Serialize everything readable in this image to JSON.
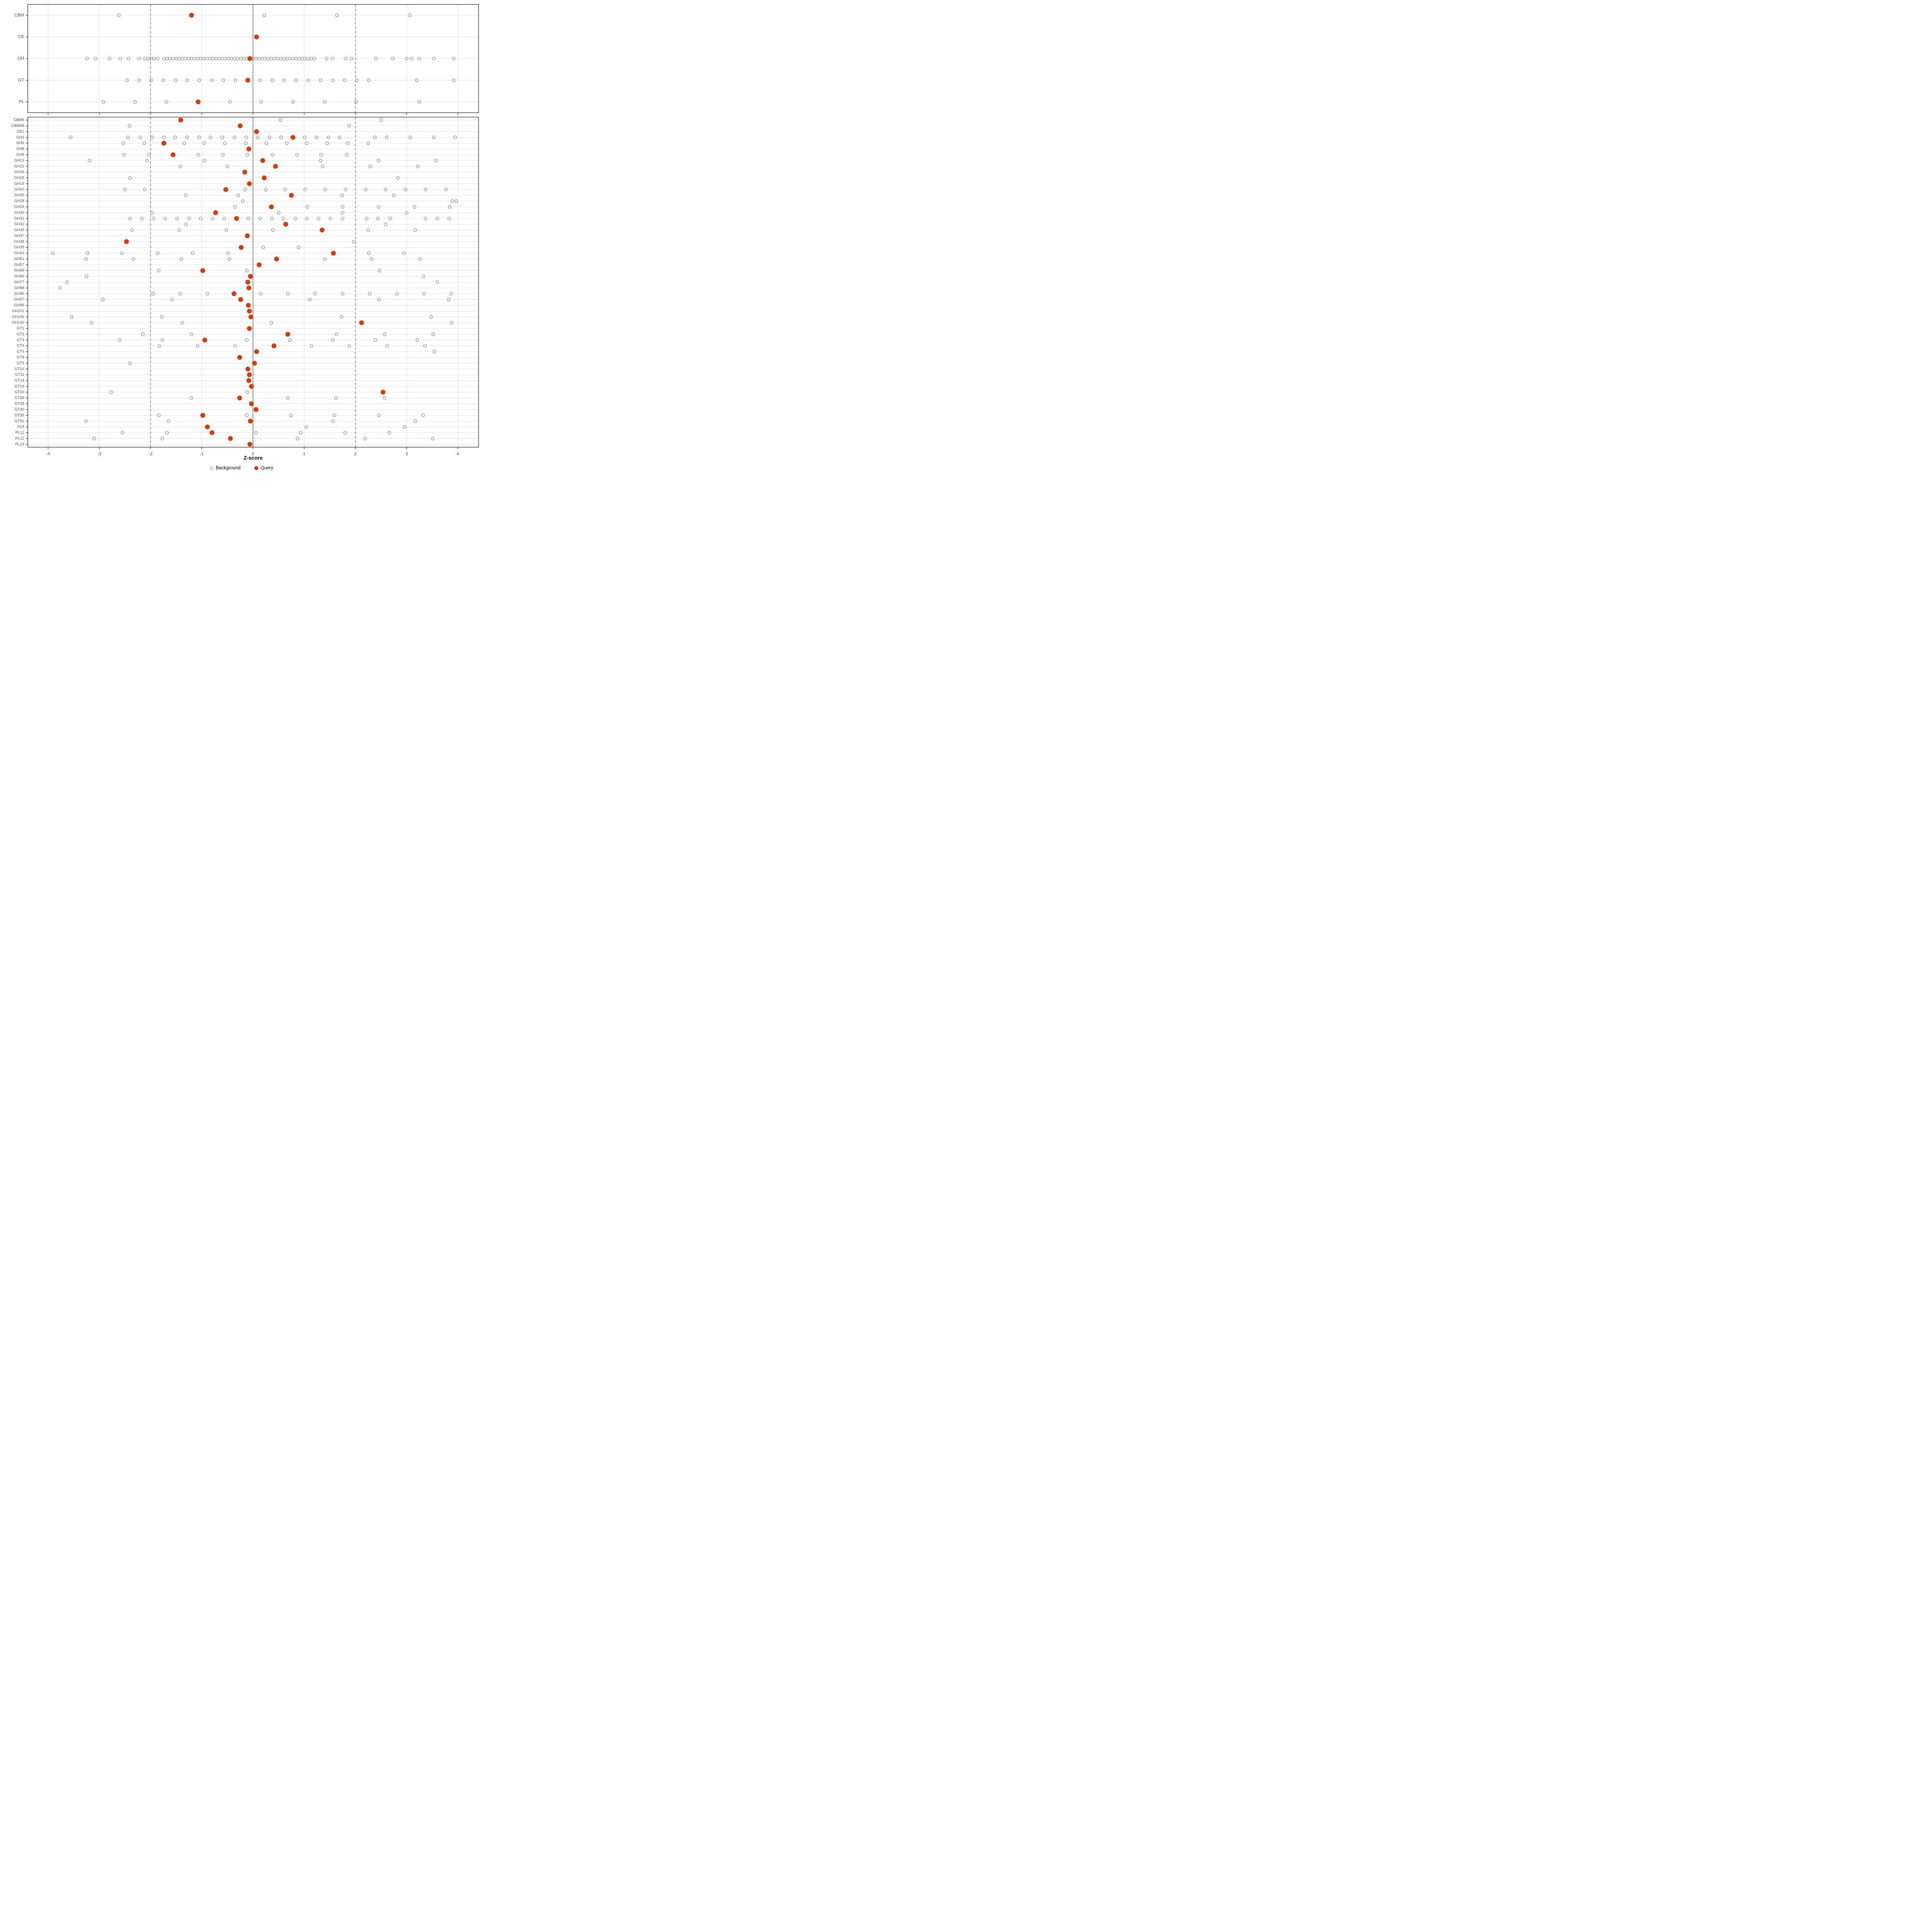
{
  "xlabel": "Z-score",
  "legend": {
    "background_label": "Background",
    "query_label": "Query"
  },
  "colors": {
    "query": "#D63A0D",
    "background_stroke": "#8A8A8A",
    "gridline": "#E2E2E2",
    "reference_line": "#4D4D4D",
    "axis_text": "#4D4D4D",
    "panel_border": "#2B2B2B"
  },
  "chart_data": [
    {
      "type": "scatter",
      "facet": "top",
      "xlabel": "Z-score",
      "xlim": [
        -4.4,
        4.4
      ],
      "x_ticks": [
        -4,
        -3,
        -2,
        -1,
        0,
        1,
        2,
        3,
        4
      ],
      "grid": true,
      "legend_position": "bottom",
      "legend_entries": [
        "Background",
        "Query"
      ],
      "reference_lines": {
        "solid": [
          0
        ],
        "dashed": [
          -2,
          2
        ]
      },
      "rows": [
        {
          "label": "CBM",
          "query": -1.2,
          "background": [
            -2.62,
            0.22,
            1.64,
            3.06
          ]
        },
        {
          "label": "CE",
          "query": 0.07,
          "background": []
        },
        {
          "label": "GH",
          "query": -0.06,
          "background": [
            -3.24,
            -3.07,
            -2.8,
            -2.59,
            -2.43,
            -2.22,
            -2.11,
            -2.05,
            -1.99,
            -1.93,
            -1.86,
            -1.74,
            -1.68,
            -1.62,
            -1.56,
            -1.5,
            -1.44,
            -1.38,
            -1.32,
            -1.26,
            -1.2,
            -1.14,
            -1.08,
            -1.02,
            -0.96,
            -0.9,
            -0.84,
            -0.78,
            -0.72,
            -0.66,
            -0.6,
            -0.54,
            -0.48,
            -0.42,
            -0.36,
            -0.3,
            -0.24,
            -0.18,
            -0.12,
            0.0,
            0.06,
            0.12,
            0.18,
            0.24,
            0.3,
            0.36,
            0.42,
            0.48,
            0.54,
            0.6,
            0.66,
            0.72,
            0.78,
            0.84,
            0.9,
            0.96,
            1.02,
            1.08,
            1.14,
            1.2,
            1.44,
            1.55,
            1.81,
            1.92,
            2.4,
            2.73,
            3.0,
            3.1,
            3.25,
            3.53,
            3.92
          ]
        },
        {
          "label": "GT",
          "query": -0.1,
          "background": [
            -2.46,
            -2.22,
            -1.99,
            -1.75,
            -1.51,
            -1.28,
            -1.05,
            -0.8,
            -0.58,
            -0.34,
            0.14,
            0.38,
            0.61,
            0.84,
            1.08,
            1.32,
            1.56,
            1.79,
            2.03,
            2.26,
            3.2,
            3.92
          ]
        },
        {
          "label": "PL",
          "query": -1.07,
          "background": [
            -2.92,
            -2.3,
            -1.69,
            -0.45,
            0.16,
            0.78,
            1.4,
            2.01,
            3.25
          ]
        }
      ]
    },
    {
      "type": "scatter",
      "facet": "bottom",
      "xlabel": "Z-score",
      "xlim": [
        -4.4,
        4.4
      ],
      "x_ticks": [
        -4,
        -3,
        -2,
        -1,
        0,
        1,
        2,
        3,
        4
      ],
      "grid": true,
      "legend_position": "bottom",
      "legend_entries": [
        "Background",
        "Query"
      ],
      "reference_lines": {
        "solid": [
          0
        ],
        "dashed": [
          -2,
          2
        ]
      },
      "rows": [
        {
          "label": "CBM6",
          "query": -1.41,
          "background": [
            0.54,
            2.5
          ]
        },
        {
          "label": "CBM48",
          "query": -0.25,
          "background": [
            -2.41,
            1.88
          ]
        },
        {
          "label": "CE1",
          "query": 0.07,
          "background": []
        },
        {
          "label": "GH3",
          "query": 0.78,
          "background": [
            -3.56,
            -2.44,
            -2.2,
            -1.97,
            -1.74,
            -1.52,
            -1.29,
            -1.05,
            -0.83,
            -0.6,
            -0.36,
            -0.13,
            0.09,
            0.32,
            0.55,
            1.01,
            1.24,
            1.47,
            1.69,
            2.38,
            2.61,
            3.07,
            3.53,
            3.95
          ]
        },
        {
          "label": "GH5",
          "query": -1.74,
          "background": [
            -2.53,
            -2.12,
            -1.34,
            -0.95,
            -0.55,
            -0.14,
            0.26,
            0.66,
            1.05,
            1.45,
            1.85,
            2.25
          ]
        },
        {
          "label": "GH8",
          "query": -0.08,
          "background": []
        },
        {
          "label": "GH9",
          "query": -1.56,
          "background": [
            -2.52,
            -2.03,
            -1.07,
            -0.59,
            -0.11,
            0.38,
            0.86,
            1.33,
            1.83
          ]
        },
        {
          "label": "GH13",
          "query": 0.19,
          "background": [
            -3.19,
            -2.07,
            -0.95,
            1.32,
            2.45,
            3.57
          ]
        },
        {
          "label": "GH15",
          "query": 0.44,
          "background": [
            -1.42,
            -0.5,
            1.36,
            2.29,
            3.22
          ]
        },
        {
          "label": "GH16",
          "query": -0.16,
          "background": []
        },
        {
          "label": "GH18",
          "query": 0.22,
          "background": [
            -2.4,
            2.83
          ]
        },
        {
          "label": "GH19",
          "query": -0.07,
          "background": []
        },
        {
          "label": "GH20",
          "query": -0.53,
          "background": [
            -2.5,
            -2.11,
            -0.15,
            0.25,
            0.63,
            1.02,
            1.41,
            1.81,
            2.2,
            2.59,
            2.98,
            3.37,
            3.77
          ]
        },
        {
          "label": "GH26",
          "query": 0.75,
          "background": [
            -1.31,
            -0.29,
            1.74,
            2.75
          ]
        },
        {
          "label": "GH28",
          "query": null,
          "background": [
            -0.2,
            3.89,
            3.97
          ]
        },
        {
          "label": "GH29",
          "query": 0.36,
          "background": [
            -0.35,
            1.06,
            1.75,
            2.45,
            3.15,
            3.84
          ]
        },
        {
          "label": "GH30",
          "query": -0.73,
          "background": [
            -1.97,
            0.5,
            1.75,
            3.0
          ]
        },
        {
          "label": "GH31",
          "query": -0.32,
          "background": [
            -2.4,
            -2.17,
            -1.94,
            -1.71,
            -1.48,
            -1.25,
            -1.02,
            -0.79,
            -0.56,
            -0.09,
            0.14,
            0.37,
            0.59,
            0.83,
            1.05,
            1.28,
            1.51,
            1.75,
            2.22,
            2.44,
            2.68,
            3.37,
            3.6,
            3.83
          ]
        },
        {
          "label": "GH32",
          "query": 0.64,
          "background": [
            -1.31,
            2.59
          ]
        },
        {
          "label": "GH33",
          "query": 1.35,
          "background": [
            -2.36,
            -1.44,
            -0.52,
            0.39,
            2.25,
            3.17
          ]
        },
        {
          "label": "GH37",
          "query": -0.11,
          "background": []
        },
        {
          "label": "GH38",
          "query": -2.47,
          "background": [
            1.97
          ]
        },
        {
          "label": "GH39",
          "query": -0.23,
          "background": [
            0.2,
            0.89
          ]
        },
        {
          "label": "GH43",
          "query": 1.57,
          "background": [
            -3.91,
            -3.23,
            -2.56,
            -1.86,
            -1.18,
            -0.49,
            2.26,
            2.95
          ]
        },
        {
          "label": "GH51",
          "query": 0.46,
          "background": [
            -3.26,
            -2.33,
            -1.4,
            -0.46,
            1.4,
            2.32,
            3.26
          ]
        },
        {
          "label": "GH57",
          "query": 0.12,
          "background": []
        },
        {
          "label": "GH65",
          "query": -0.98,
          "background": [
            -1.84,
            -0.12,
            2.47
          ]
        },
        {
          "label": "GH66",
          "query": -0.05,
          "background": [
            -3.25,
            3.33
          ]
        },
        {
          "label": "GH77",
          "query": -0.1,
          "background": [
            -3.63,
            3.6
          ]
        },
        {
          "label": "GH88",
          "query": -0.08,
          "background": [
            -3.77
          ]
        },
        {
          "label": "GH95",
          "query": -0.37,
          "background": [
            -1.95,
            -1.42,
            -0.89,
            0.15,
            0.68,
            1.21,
            1.75,
            2.28,
            2.81,
            3.34,
            3.87
          ]
        },
        {
          "label": "GH97",
          "query": -0.24,
          "background": [
            -2.93,
            -1.58,
            1.11,
            2.46,
            3.82
          ]
        },
        {
          "label": "GH99",
          "query": -0.09,
          "background": []
        },
        {
          "label": "GH101",
          "query": -0.07,
          "background": []
        },
        {
          "label": "GH105",
          "query": -0.04,
          "background": [
            -3.54,
            -1.78,
            1.73,
            3.48
          ]
        },
        {
          "label": "GH130",
          "query": 2.12,
          "background": [
            -3.15,
            -1.38,
            0.36,
            3.88
          ]
        },
        {
          "label": "GT1",
          "query": -0.07,
          "background": []
        },
        {
          "label": "GT2",
          "query": 0.68,
          "background": [
            -2.15,
            -1.2,
            1.63,
            2.57,
            3.52
          ]
        },
        {
          "label": "GT3",
          "query": -0.94,
          "background": [
            -2.6,
            -1.77,
            -0.12,
            0.72,
            1.56,
            2.39,
            3.21
          ]
        },
        {
          "label": "GT4",
          "query": 0.41,
          "background": [
            -1.83,
            -1.08,
            -0.35,
            1.14,
            1.88,
            2.62,
            3.36
          ]
        },
        {
          "label": "GT5",
          "query": 0.07,
          "background": [
            3.54
          ]
        },
        {
          "label": "GT8",
          "query": -0.26,
          "background": []
        },
        {
          "label": "GT9",
          "query": 0.03,
          "background": [
            -2.4
          ]
        },
        {
          "label": "GT10",
          "query": -0.1,
          "background": []
        },
        {
          "label": "GT11",
          "query": -0.07,
          "background": []
        },
        {
          "label": "GT14",
          "query": -0.08,
          "background": []
        },
        {
          "label": "GT19",
          "query": -0.03,
          "background": []
        },
        {
          "label": "GT20",
          "query": 2.54,
          "background": [
            -2.77,
            -0.11
          ]
        },
        {
          "label": "GT26",
          "query": -0.26,
          "background": [
            -1.2,
            0.68,
            1.62,
            2.57
          ]
        },
        {
          "label": "GT28",
          "query": -0.03,
          "background": []
        },
        {
          "label": "GT30",
          "query": 0.06,
          "background": []
        },
        {
          "label": "GT35",
          "query": -0.98,
          "background": [
            -1.84,
            -0.12,
            0.74,
            1.59,
            2.46,
            3.32
          ]
        },
        {
          "label": "GT51",
          "query": -0.05,
          "background": [
            -3.26,
            -1.65,
            1.56,
            3.17
          ]
        },
        {
          "label": "PL8",
          "query": -0.89,
          "background": [
            1.04,
            2.96
          ]
        },
        {
          "label": "PL11",
          "query": -0.8,
          "background": [
            -2.55,
            -1.68,
            0.06,
            0.93,
            1.8,
            2.66
          ]
        },
        {
          "label": "PL12",
          "query": -0.44,
          "background": [
            -3.1,
            -1.77,
            0.87,
            2.19,
            3.51
          ]
        },
        {
          "label": "PL13",
          "query": -0.06,
          "background": []
        }
      ]
    }
  ]
}
